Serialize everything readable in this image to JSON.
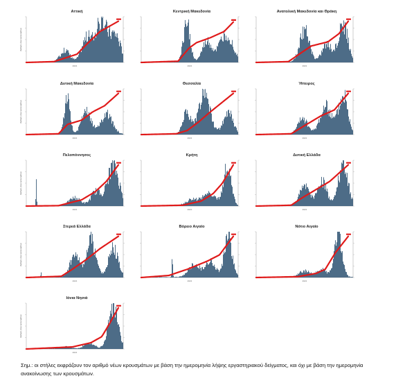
{
  "footnote": "Σημ.: οι στήλες εκφράζουν τον αριθμό νέων κρουσμάτων με βάση την ημερομηνία λήψης εργαστηριακού δείγματος, και όχι με βάση την ημερομηνία ανακοίνωσης των κρουσμάτων.",
  "colors": {
    "bars": "#3e5f7d",
    "cumulative_line": "#e01a1a"
  },
  "chart_data": [
    {
      "type": "bar",
      "title": "Αττική",
      "ylabel": "Αριθμός νέων κρουσμάτων",
      "xlabel": "2021",
      "cum_label": "",
      "waves": [
        [
          0.4,
          0.05,
          0.3
        ],
        [
          0.62,
          0.05,
          0.55
        ],
        [
          0.78,
          0.07,
          1.0
        ],
        [
          0.93,
          0.05,
          0.6
        ]
      ],
      "line": [
        [
          0,
          0
        ],
        [
          0.3,
          0.02
        ],
        [
          0.55,
          0.2
        ],
        [
          0.66,
          0.45
        ],
        [
          0.8,
          0.75
        ],
        [
          1,
          1
        ]
      ]
    },
    {
      "type": "bar",
      "title": "Κεντρική Μακεδονία",
      "ylabel": "",
      "xlabel": "2021",
      "cum_label": "",
      "waves": [
        [
          0.47,
          0.035,
          1.0
        ],
        [
          0.68,
          0.05,
          0.5
        ],
        [
          0.88,
          0.07,
          0.7
        ]
      ],
      "line": [
        [
          0,
          0
        ],
        [
          0.4,
          0.03
        ],
        [
          0.52,
          0.35
        ],
        [
          0.6,
          0.48
        ],
        [
          0.75,
          0.6
        ],
        [
          0.9,
          0.75
        ],
        [
          1,
          0.98
        ]
      ]
    },
    {
      "type": "bar",
      "title": "Ανατολική Μακεδονία και Θράκη",
      "ylabel": "",
      "xlabel": "2021",
      "cum_label": "",
      "waves": [
        [
          0.5,
          0.05,
          0.8
        ],
        [
          0.73,
          0.05,
          0.45
        ],
        [
          0.9,
          0.05,
          0.95
        ]
      ],
      "line": [
        [
          0,
          0
        ],
        [
          0.35,
          0.02
        ],
        [
          0.5,
          0.25
        ],
        [
          0.6,
          0.4
        ],
        [
          0.78,
          0.5
        ],
        [
          0.9,
          0.7
        ],
        [
          1,
          1
        ]
      ]
    },
    {
      "type": "bar",
      "title": "Δυτική Μακεδονία",
      "ylabel": "Αριθμός νέων κρουσμάτων",
      "xlabel": "2021",
      "cum_label": "",
      "waves": [
        [
          0.42,
          0.03,
          0.9
        ],
        [
          0.62,
          0.05,
          0.55
        ],
        [
          0.83,
          0.06,
          0.5
        ]
      ],
      "line": [
        [
          0,
          0
        ],
        [
          0.35,
          0.02
        ],
        [
          0.45,
          0.25
        ],
        [
          0.6,
          0.35
        ],
        [
          0.72,
          0.55
        ],
        [
          0.85,
          0.7
        ],
        [
          1,
          1
        ]
      ]
    },
    {
      "type": "bar",
      "title": "Θεσσαλία",
      "ylabel": "",
      "xlabel": "2021",
      "cum_label": "",
      "waves": [
        [
          0.47,
          0.04,
          0.55
        ],
        [
          0.65,
          0.06,
          1.0
        ],
        [
          0.9,
          0.05,
          0.55
        ]
      ],
      "line": [
        [
          0,
          0
        ],
        [
          0.38,
          0.02
        ],
        [
          0.5,
          0.1
        ],
        [
          0.62,
          0.3
        ],
        [
          0.75,
          0.55
        ],
        [
          1,
          1
        ]
      ]
    },
    {
      "type": "bar",
      "title": "Ήπειρος",
      "ylabel": "",
      "xlabel": "2021",
      "cum_label": "",
      "waves": [
        [
          0.48,
          0.05,
          0.4
        ],
        [
          0.72,
          0.06,
          0.7
        ],
        [
          0.9,
          0.05,
          0.95
        ]
      ],
      "line": [
        [
          0,
          0
        ],
        [
          0.38,
          0.02
        ],
        [
          0.55,
          0.25
        ],
        [
          0.7,
          0.45
        ],
        [
          0.85,
          0.6
        ],
        [
          1,
          1
        ]
      ]
    },
    {
      "type": "bar",
      "title": "Πελοπόννησος",
      "ylabel": "Αριθμός νέων κρουσμάτων",
      "xlabel": "2021",
      "cum_label": "",
      "waves": [
        [
          0.1,
          0.004,
          0.55
        ],
        [
          0.5,
          0.06,
          0.2
        ],
        [
          0.72,
          0.05,
          0.35
        ],
        [
          0.9,
          0.06,
          1.0
        ]
      ],
      "line": [
        [
          0,
          0
        ],
        [
          0.35,
          0.01
        ],
        [
          0.6,
          0.15
        ],
        [
          0.75,
          0.35
        ],
        [
          0.87,
          0.6
        ],
        [
          1,
          1
        ]
      ]
    },
    {
      "type": "bar",
      "title": "Κρήτη",
      "ylabel": "",
      "xlabel": "2021",
      "cum_label": "",
      "waves": [
        [
          0.52,
          0.06,
          0.15
        ],
        [
          0.7,
          0.07,
          0.3
        ],
        [
          0.89,
          0.04,
          1.0
        ]
      ],
      "line": [
        [
          0,
          0
        ],
        [
          0.45,
          0.02
        ],
        [
          0.65,
          0.12
        ],
        [
          0.78,
          0.3
        ],
        [
          0.88,
          0.55
        ],
        [
          1,
          1
        ]
      ]
    },
    {
      "type": "bar",
      "title": "Δυτική Ελλάδα",
      "ylabel": "",
      "xlabel": "2021",
      "cum_label": "",
      "waves": [
        [
          0.5,
          0.05,
          0.5
        ],
        [
          0.68,
          0.05,
          0.6
        ],
        [
          0.9,
          0.05,
          1.0
        ]
      ],
      "line": [
        [
          0,
          0
        ],
        [
          0.38,
          0.02
        ],
        [
          0.5,
          0.2
        ],
        [
          0.65,
          0.4
        ],
        [
          0.8,
          0.6
        ],
        [
          1,
          1
        ]
      ]
    },
    {
      "type": "bar",
      "title": "Στερεά Ελλάδα",
      "ylabel": "Αριθμός νέων κρουσμάτων",
      "xlabel": "2021",
      "cum_label": "",
      "waves": [
        [
          0.15,
          0.004,
          0.1
        ],
        [
          0.5,
          0.05,
          0.55
        ],
        [
          0.67,
          0.05,
          0.9
        ],
        [
          0.9,
          0.05,
          0.7
        ]
      ],
      "line": [
        [
          0,
          0
        ],
        [
          0.38,
          0.03
        ],
        [
          0.5,
          0.2
        ],
        [
          0.66,
          0.45
        ],
        [
          0.8,
          0.7
        ],
        [
          1,
          1
        ]
      ]
    },
    {
      "type": "bar",
      "title": "Βόρειο Αιγαίο",
      "ylabel": "",
      "xlabel": "2021",
      "cum_label": "",
      "waves": [
        [
          0.32,
          0.005,
          0.5
        ],
        [
          0.55,
          0.06,
          0.3
        ],
        [
          0.72,
          0.05,
          0.4
        ],
        [
          0.9,
          0.04,
          1.0
        ]
      ],
      "line": [
        [
          0,
          0
        ],
        [
          0.3,
          0.05
        ],
        [
          0.5,
          0.2
        ],
        [
          0.72,
          0.4
        ],
        [
          0.85,
          0.55
        ],
        [
          1,
          1
        ]
      ]
    },
    {
      "type": "bar",
      "title": "Νότιο Αιγαίο",
      "ylabel": "",
      "xlabel": "2021",
      "cum_label": "",
      "waves": [
        [
          0.5,
          0.06,
          0.15
        ],
        [
          0.68,
          0.05,
          0.2
        ],
        [
          0.85,
          0.04,
          1.0
        ]
      ],
      "line": [
        [
          0,
          0
        ],
        [
          0.45,
          0.02
        ],
        [
          0.65,
          0.1
        ],
        [
          0.75,
          0.2
        ],
        [
          0.86,
          0.6
        ],
        [
          1,
          1
        ]
      ]
    },
    {
      "type": "bar",
      "title": "Ιόνια Νησιά",
      "ylabel": "Αριθμός νέων κρουσμάτων",
      "xlabel": "2021",
      "cum_label": "",
      "waves": [
        [
          0.4,
          0.05,
          0.05
        ],
        [
          0.65,
          0.05,
          0.15
        ],
        [
          0.9,
          0.05,
          1.0
        ]
      ],
      "line": [
        [
          0,
          0
        ],
        [
          0.5,
          0.05
        ],
        [
          0.7,
          0.15
        ],
        [
          0.82,
          0.3
        ],
        [
          0.9,
          0.6
        ],
        [
          1,
          1
        ]
      ]
    }
  ]
}
